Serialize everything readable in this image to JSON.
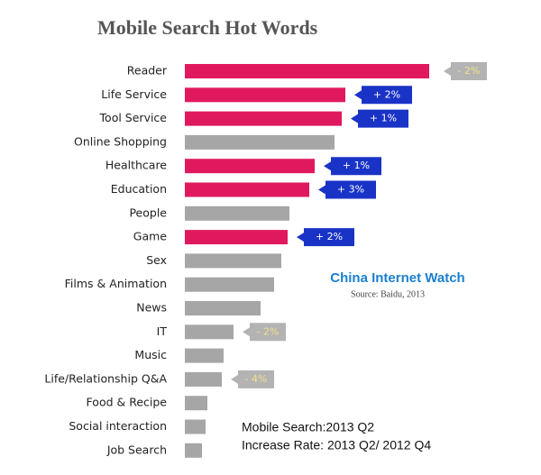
{
  "chart_data": {
    "type": "bar",
    "orientation": "horizontal",
    "title": "Mobile Search Hot Words",
    "categories": [
      "Reader",
      "Life Service",
      "Tool Service",
      "Online Shopping",
      "Healthcare",
      "Education",
      "People",
      "Game",
      "Sex",
      "Films & Animation",
      "News",
      "IT",
      "Music",
      "Life/Relationship Q&A",
      "Food & Recipe",
      "Social interaction",
      "Job Search"
    ],
    "values": [
      271,
      178,
      174,
      166,
      144,
      138,
      116,
      114,
      107,
      99,
      84,
      54,
      43,
      41,
      25,
      23,
      19
    ],
    "colors": [
      "#e0195f",
      "#e0195f",
      "#e0195f",
      "#a6a6a6",
      "#e0195f",
      "#e0195f",
      "#a6a6a6",
      "#e0195f",
      "#a6a6a6",
      "#a6a6a6",
      "#a6a6a6",
      "#a6a6a6",
      "#a6a6a6",
      "#a6a6a6",
      "#a6a6a6",
      "#a6a6a6",
      "#a6a6a6"
    ],
    "changes": [
      "- 2%",
      "+ 2%",
      "+ 1%",
      null,
      "+ 1%",
      "+ 3%",
      null,
      "+ 2%",
      null,
      null,
      null,
      "- 2%",
      null,
      "- 4%",
      null,
      null,
      null
    ],
    "brand": "China Internet Watch",
    "source": "Source: Baidu, 2013",
    "notes": [
      "Mobile Search:2013 Q2",
      "Increase Rate: 2013 Q2/ 2012 Q4"
    ]
  }
}
